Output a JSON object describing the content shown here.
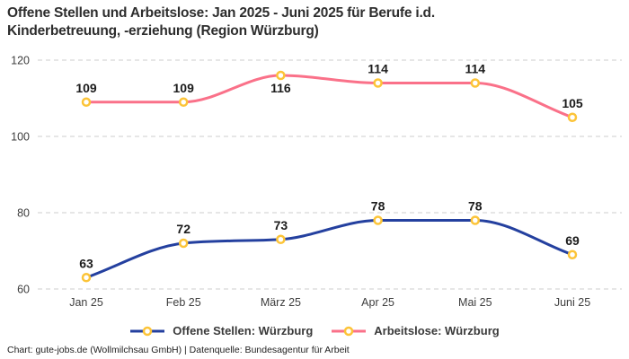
{
  "title": {
    "line1": "Offene Stellen und Arbeitslose: Jan 2025 - Juni 2025 für Berufe i.d.",
    "line2": "Kinderbetreuung, -erziehung (Region Würzburg)"
  },
  "footer": "Chart: gute-jobs.de (Wollmilchsau GmbH) | Datenquelle: Bundesagentur für Arbeit",
  "chart_data": {
    "type": "line",
    "categories": [
      "Jan 25",
      "Feb 25",
      "März 25",
      "Apr 25",
      "Mai 25",
      "Juni 25"
    ],
    "series": [
      {
        "name": "Offene Stellen: Würzburg",
        "values": [
          63,
          72,
          73,
          78,
          78,
          69
        ],
        "color": "#24409f",
        "label_below": [
          false,
          false,
          false,
          false,
          false,
          false
        ]
      },
      {
        "name": "Arbeitslose: Würzburg",
        "values": [
          109,
          109,
          116,
          114,
          114,
          105
        ],
        "color": "#fa7189",
        "label_below": [
          false,
          false,
          true,
          false,
          false,
          false
        ]
      }
    ],
    "yticks": [
      60,
      80,
      100,
      120
    ],
    "ylim": [
      60,
      120
    ],
    "grid": "horizontal-dashed",
    "legend_position": "bottom",
    "marker": {
      "fill": "#ffffff",
      "stroke": "#fcc438"
    },
    "grid_color": "#cccccc",
    "curve": "monotone"
  }
}
